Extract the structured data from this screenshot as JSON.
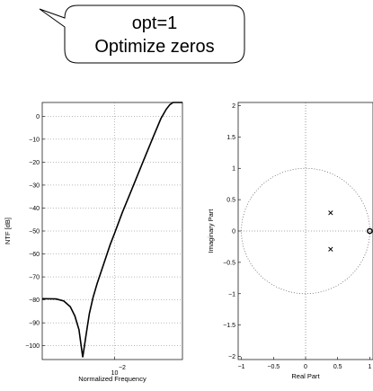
{
  "callout": {
    "line1": "opt=1",
    "line2": "Optimize zeros"
  },
  "chart_data": [
    {
      "type": "line",
      "xlabel": "Normalized Frequency",
      "ylabel": "NTF [dB]",
      "x_scale": "log",
      "x_tick_label": "10",
      "x_tick_exponent": "-2",
      "x_tick_value": 0.01,
      "xlim": [
        0.0018,
        0.05
      ],
      "ylim": [
        -106,
        6
      ],
      "y_ticks": [
        0,
        -10,
        -20,
        -30,
        -40,
        -50,
        -60,
        -70,
        -80,
        -90,
        -100
      ],
      "grid": true,
      "series": [
        {
          "x": [
            0.0018,
            0.0025,
            0.003,
            0.0035,
            0.0039,
            0.0043,
            0.0047,
            0.0051,
            0.0055,
            0.006,
            0.0066,
            0.0075,
            0.009,
            0.01,
            0.012,
            0.015,
            0.02,
            0.025,
            0.03,
            0.034,
            0.037,
            0.04,
            0.043,
            0.046,
            0.05
          ],
          "y": [
            -79.5,
            -79.6,
            -80.5,
            -83,
            -87,
            -93,
            -105,
            -95,
            -86,
            -79,
            -73,
            -66,
            -56,
            -51,
            -42,
            -32,
            -19,
            -9,
            -1,
            3,
            5,
            6,
            6,
            6,
            6
          ]
        }
      ]
    },
    {
      "type": "scatter",
      "xlabel": "Real Part",
      "ylabel": "Imaginary Part",
      "xlim": [
        -1.05,
        1.05
      ],
      "ylim": [
        -2.05,
        2.05
      ],
      "x_ticks": [
        -1,
        -0.5,
        0,
        0.5,
        1
      ],
      "y_ticks": [
        2,
        1.5,
        1,
        0.5,
        0,
        -0.5,
        -1,
        -1.5,
        -2
      ],
      "unit_circle": true,
      "poles": [
        [
          0.39,
          0.29
        ],
        [
          0.39,
          -0.29
        ]
      ],
      "zeros": [
        [
          1,
          0
        ]
      ]
    }
  ]
}
